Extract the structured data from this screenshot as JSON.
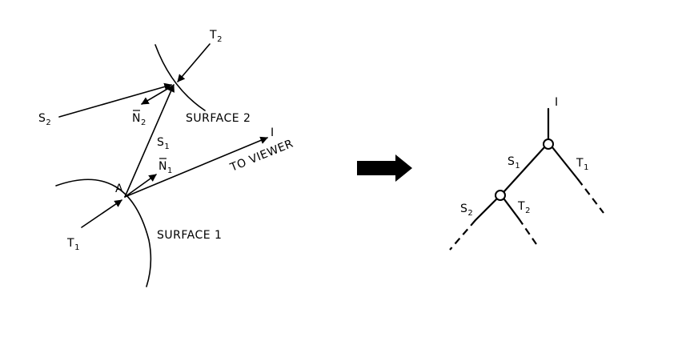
{
  "left_diagram": {
    "t2": "T",
    "t2_sub": "2",
    "s2": "S",
    "s2_sub": "2",
    "n2": "N",
    "n2_sub": "2",
    "surface2": "SURFACE 2",
    "s1": "S",
    "s1_sub": "1",
    "i": "I",
    "to_viewer": "TO VIEWER",
    "n1": "N",
    "n1_sub": "1",
    "a": "A",
    "t1": "T",
    "t1_sub": "1",
    "surface1": "SURFACE 1"
  },
  "right_tree": {
    "i": "I",
    "s1": "S",
    "s1_sub": "1",
    "t1": "T",
    "t1_sub": "1",
    "s2": "S",
    "s2_sub": "2",
    "t2": "T",
    "t2_sub": "2"
  }
}
